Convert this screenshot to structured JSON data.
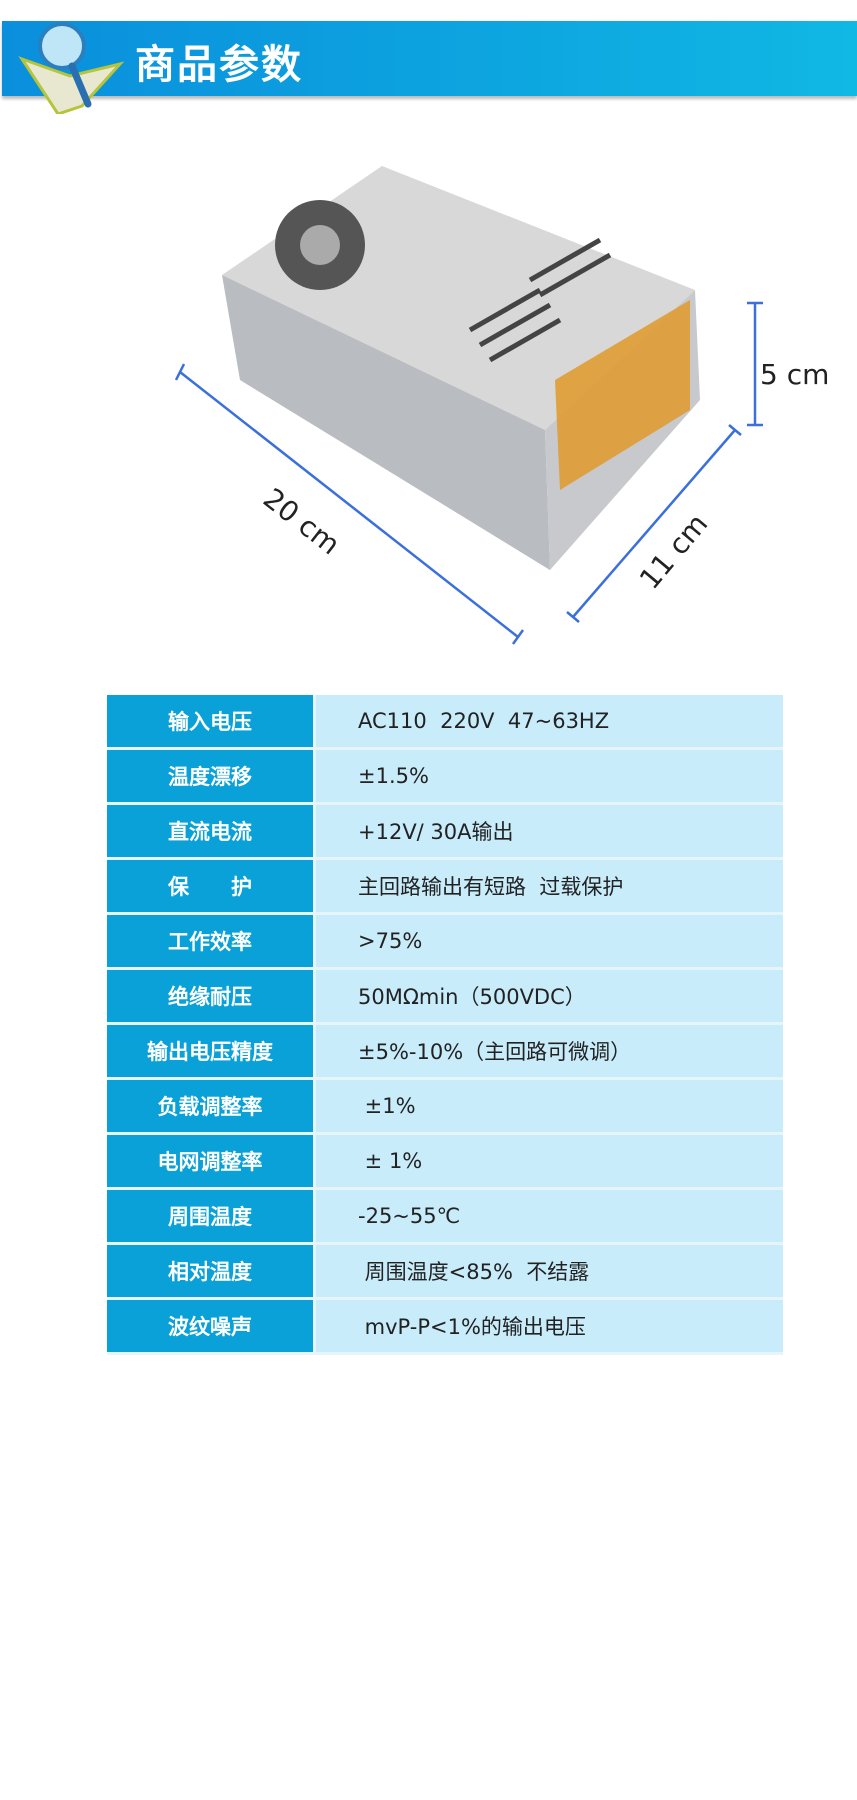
{
  "header": {
    "title": "商品参数",
    "icon": "book-magnifier-icon",
    "colors": {
      "banner": "#0a8fdc",
      "label_cell": "#0aa0d8",
      "value_cell": "#c9ecfb"
    }
  },
  "product": {
    "dimensions": {
      "height": "5 cm",
      "length": "20 cm",
      "width": "11 cm"
    }
  },
  "specs": [
    {
      "label": "输入电压",
      "value": "AC110  220V  47~63HZ"
    },
    {
      "label": "温度漂移",
      "value": "±1.5%"
    },
    {
      "label": "直流电流",
      "value": "+12V/ 30A输出"
    },
    {
      "label": "保　　护",
      "value": "主回路输出有短路  过载保护"
    },
    {
      "label": "工作效率",
      "value": ">75%"
    },
    {
      "label": "绝缘耐压",
      "value": "50MΩmin（500VDC）"
    },
    {
      "label": "输出电压精度",
      "value": "±5%-10%（主回路可微调）"
    },
    {
      "label": "负载调整率",
      "value": " ±1%"
    },
    {
      "label": "电网调整率",
      "value": " ± 1%"
    },
    {
      "label": "周围温度",
      "value": "-25~55℃"
    },
    {
      "label": "相对温度",
      "value": " 周围温度<85%  不结露"
    },
    {
      "label": "波纹噪声",
      "value": " mvP-P<1%的输出电压"
    }
  ]
}
